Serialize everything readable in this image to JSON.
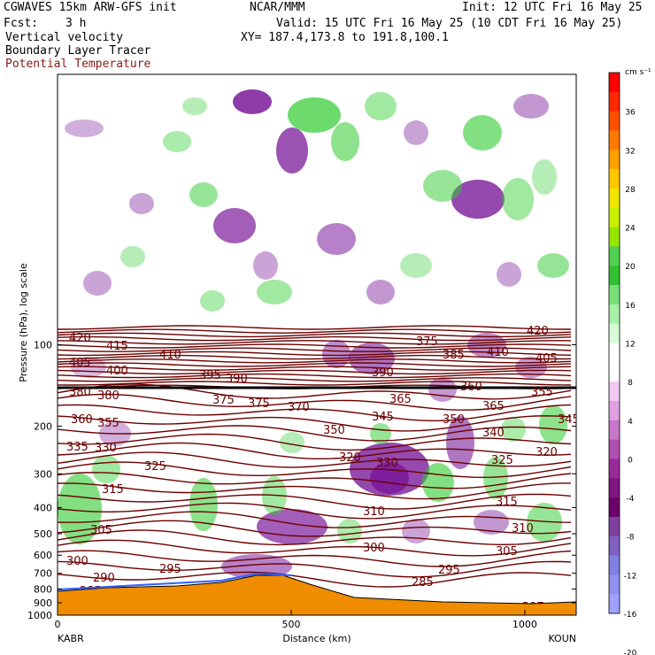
{
  "header": {
    "model": "CGWAVES 15km ARW-GFS init",
    "org": "NCAR/MMM",
    "init": "Init: 12 UTC Fri 16 May 25",
    "fcst_label": "Fcst:",
    "fcst_value": "3 h",
    "valid": "Valid: 15 UTC Fri 16 May 25 (10 CDT Fri 16 May 25)",
    "field1": "Vertical velocity",
    "xy": "XY= 187.4,173.8 to 191.8,100.1",
    "field2": "Boundary Layer Tracer",
    "field3": "Potential Temperature"
  },
  "colors": {
    "theta_contour": "#6b0000",
    "terrain": "#f08c00",
    "positive": "#2ecc2e",
    "negative": "#7a1a9a"
  },
  "chart_data": {
    "type": "heatmap",
    "xlabel": "Distance (km)",
    "ylabel": "Pressure (hPa), log scale",
    "x_ticks": [
      "0",
      "500",
      "1000"
    ],
    "x_endpoints": {
      "left": "KABR",
      "right": "KOUN"
    },
    "y_ticks": [
      "100",
      "200",
      "300",
      "400",
      "500",
      "600",
      "700",
      "800",
      "900",
      "1000"
    ],
    "xlim": [
      0,
      1110
    ],
    "ylim": [
      1000,
      10
    ],
    "y_scale": "log",
    "colorbar": {
      "unit": "cm s⁻¹",
      "ticks": [
        "36",
        "32",
        "28",
        "24",
        "20",
        "16",
        "12",
        "8",
        "4",
        "0",
        "-4",
        "-8",
        "-12",
        "-16",
        "-20"
      ],
      "colors": [
        "#ff0000",
        "#ff2800",
        "#ff5000",
        "#ff7800",
        "#ffa000",
        "#ffc800",
        "#f0e600",
        "#c8f000",
        "#96e600",
        "#50d050",
        "#30c030",
        "#78e078",
        "#a8f0a8",
        "#d6fcd6",
        "#ffffff",
        "#ffffff",
        "#f0c8f0",
        "#e0a0e0",
        "#c878c8",
        "#b050b0",
        "#9a2a9a",
        "#801680",
        "#6a006a",
        "#8040a0",
        "#8060c0",
        "#8080e0",
        "#9090f0",
        "#a0a0ff"
      ]
    },
    "theta_labels": [
      "420",
      "415",
      "410",
      "405",
      "400",
      "395",
      "390",
      "385",
      "380",
      "375",
      "370",
      "365",
      "360",
      "355",
      "350",
      "345",
      "340",
      "335",
      "330",
      "325",
      "320",
      "315",
      "310",
      "305",
      "300",
      "295",
      "290",
      "285",
      "297"
    ]
  }
}
